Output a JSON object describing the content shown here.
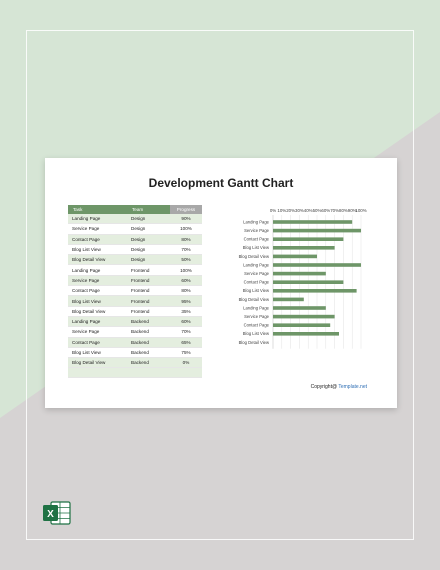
{
  "page": {
    "title": "Development Gantt Chart",
    "footer_prefix": "Copyright@ ",
    "footer_brand": "Template.net",
    "excel_letter": "X"
  },
  "colors": {
    "bg_light": "#d6e5d5",
    "bg_gray": "#d6d3d3",
    "header_green": "#6e9668",
    "header_gray": "#a8a8a8",
    "row_tint": "#e4eedf",
    "bar": "#6e9668",
    "excel_green": "#1f7244"
  },
  "table": {
    "headers": {
      "task": "Task",
      "team": "Team",
      "progress": "Progress"
    },
    "rows": [
      {
        "task": "Landing Page",
        "team": "Design",
        "progress": "90%"
      },
      {
        "task": "Service Page",
        "team": "Design",
        "progress": "100%"
      },
      {
        "task": "Contact Page",
        "team": "Design",
        "progress": "80%"
      },
      {
        "task": "Blog List View",
        "team": "Design",
        "progress": "70%"
      },
      {
        "task": "Blog Detail View",
        "team": "Design",
        "progress": "50%"
      },
      {
        "task": "Landing Page",
        "team": "Frontend",
        "progress": "100%"
      },
      {
        "task": "Service Page",
        "team": "Frontend",
        "progress": "60%"
      },
      {
        "task": "Contact Page",
        "team": "Frontend",
        "progress": "80%"
      },
      {
        "task": "Blog List View",
        "team": "Frontend",
        "progress": "95%"
      },
      {
        "task": "Blog Detail View",
        "team": "Frontend",
        "progress": "35%"
      },
      {
        "task": "Landing Page",
        "team": "Backend",
        "progress": "60%"
      },
      {
        "task": "Service Page",
        "team": "Backend",
        "progress": "70%"
      },
      {
        "task": "Contact Page",
        "team": "Backend",
        "progress": "65%"
      },
      {
        "task": "Blog List View",
        "team": "Backend",
        "progress": "75%"
      },
      {
        "task": "Blog Detail View",
        "team": "Backend",
        "progress": "0%"
      }
    ]
  },
  "chart_data": {
    "type": "bar",
    "orientation": "horizontal",
    "categories": [
      "Landing Page",
      "Service Page",
      "Contact Page",
      "Blog List View",
      "Blog Detail View",
      "Landing Page",
      "Service Page",
      "Contact Page",
      "Blog List View",
      "Blog Detail View",
      "Landing Page",
      "Service Page",
      "Contact Page",
      "Blog List View",
      "Blog Detail View"
    ],
    "values": [
      90,
      100,
      80,
      70,
      50,
      100,
      60,
      80,
      95,
      35,
      60,
      70,
      65,
      75,
      0
    ],
    "xlim": [
      0,
      100
    ],
    "xticks": [
      "0%",
      "10%",
      "20%",
      "30%",
      "40%",
      "50%",
      "60%",
      "70%",
      "80%",
      "90%",
      "100%"
    ],
    "axis_position": "top",
    "grid": true,
    "bar_color": "#6e9668"
  }
}
